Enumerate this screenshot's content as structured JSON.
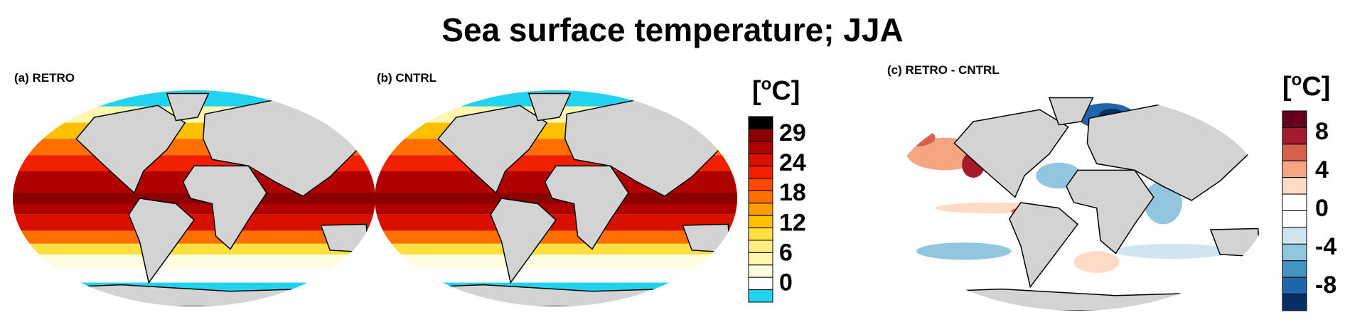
{
  "title": "Sea surface temperature; JJA",
  "panels": [
    {
      "label": "(a) RETRO"
    },
    {
      "label": "(b) CNTRL"
    },
    {
      "label": "(c) RETRO - CNTRL"
    }
  ],
  "colorbars": [
    {
      "unit": {
        "open": "[",
        "sup": "o",
        "close": "C]"
      },
      "ticks": [
        29,
        24,
        18,
        12,
        6,
        0
      ],
      "colors": [
        "#000000",
        "#8b0000",
        "#b00000",
        "#d81000",
        "#f02000",
        "#ff4800",
        "#ff7000",
        "#ff9b00",
        "#ffc000",
        "#ffe040",
        "#ffef80",
        "#fff7b0",
        "#fffde0",
        "#ffffff",
        "#22d3f0"
      ]
    },
    {
      "unit": {
        "open": "[",
        "sup": "o",
        "close": "C]"
      },
      "ticks": [
        8,
        4,
        0,
        -4,
        -8
      ],
      "colors": [
        "#67001f",
        "#a51b2e",
        "#d6604d",
        "#f4a582",
        "#fddbc7",
        "#ffffff",
        "#ffffff",
        "#d1e5f0",
        "#92c5de",
        "#4393c3",
        "#2166ac",
        "#053061"
      ]
    }
  ]
}
